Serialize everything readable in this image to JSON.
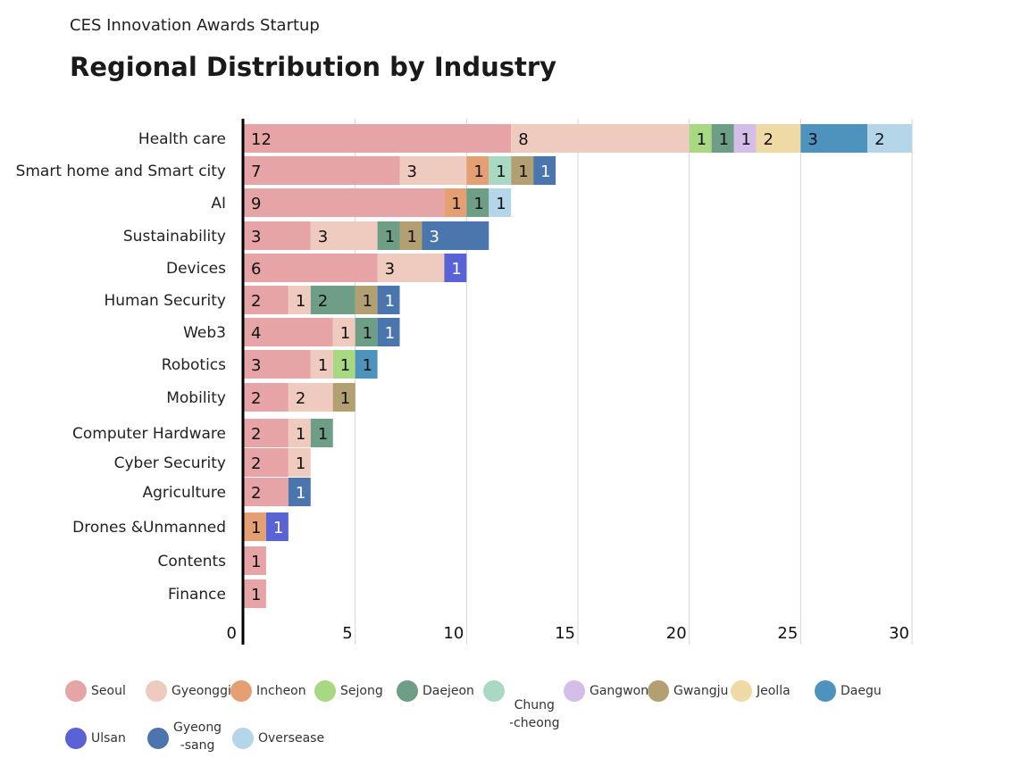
{
  "header": {
    "subtitle": "CES Innovation Awards Startup",
    "title": "Regional Distribution by Industry"
  },
  "chart_data": {
    "type": "bar",
    "orientation": "horizontal",
    "stacked": true,
    "title": "Regional Distribution by Industry",
    "subtitle": "CES Innovation Awards Startup",
    "xlabel": "",
    "ylabel": "",
    "xlim": [
      0,
      30
    ],
    "xticks": [
      "0",
      "5",
      "10",
      "15",
      "20",
      "25",
      "30"
    ],
    "grid": "vertical",
    "legend_position": "bottom",
    "categories": [
      "Health care",
      "Smart home and Smart city",
      "AI",
      "Sustainability",
      "Devices",
      "Human Security",
      "Web3",
      "Robotics",
      "Mobility",
      "Computer Hardware",
      "Cyber Security",
      "Agriculture",
      "Drones &Unmanned",
      "Contents",
      "Finance"
    ],
    "series": [
      {
        "name": "Seoul",
        "legend_label": "Seoul",
        "color": "#e6a4a7",
        "values": [
          12,
          7,
          9,
          3,
          6,
          2,
          4,
          3,
          2,
          2,
          2,
          2,
          0,
          1,
          1
        ]
      },
      {
        "name": "Gyeonggi",
        "legend_label": "Gyeonggi",
        "color": "#efcabe",
        "values": [
          8,
          3,
          0,
          3,
          3,
          1,
          1,
          1,
          2,
          1,
          1,
          0,
          0,
          0,
          0
        ]
      },
      {
        "name": "Incheon",
        "legend_label": "Incheon",
        "color": "#e4a072",
        "values": [
          0,
          1,
          1,
          0,
          0,
          0,
          0,
          0,
          0,
          0,
          0,
          0,
          1,
          0,
          0
        ]
      },
      {
        "name": "Sejong",
        "legend_label": "Sejong",
        "color": "#a8d882",
        "values": [
          1,
          0,
          0,
          0,
          0,
          0,
          0,
          1,
          0,
          0,
          0,
          0,
          0,
          0,
          0
        ]
      },
      {
        "name": "Daejeon",
        "legend_label": "Daejeon",
        "color": "#6f9e86",
        "values": [
          1,
          0,
          1,
          1,
          0,
          2,
          1,
          0,
          0,
          1,
          0,
          0,
          0,
          0,
          0
        ]
      },
      {
        "name": "Chungcheong",
        "legend_label": "Chung\n-cheong",
        "color": "#aad9c3",
        "values": [
          0,
          1,
          0,
          0,
          0,
          0,
          0,
          0,
          0,
          0,
          0,
          0,
          0,
          0,
          0
        ]
      },
      {
        "name": "Gangwon",
        "legend_label": "Gangwon",
        "color": "#d4bde6",
        "values": [
          1,
          0,
          0,
          0,
          0,
          0,
          0,
          0,
          0,
          0,
          0,
          0,
          0,
          0,
          0
        ]
      },
      {
        "name": "Gwangju",
        "legend_label": "Gwangju",
        "color": "#b29f72",
        "values": [
          0,
          1,
          0,
          1,
          0,
          1,
          0,
          0,
          1,
          0,
          0,
          0,
          0,
          0,
          0
        ]
      },
      {
        "name": "Jeolla",
        "legend_label": "Jeolla",
        "color": "#efd9a5",
        "values": [
          2,
          0,
          0,
          0,
          0,
          0,
          0,
          0,
          0,
          0,
          0,
          0,
          0,
          0,
          0
        ]
      },
      {
        "name": "Daegu",
        "legend_label": "Daegu",
        "color": "#4e93bd",
        "values": [
          3,
          0,
          0,
          0,
          0,
          0,
          0,
          1,
          0,
          0,
          0,
          0,
          0,
          0,
          0
        ]
      },
      {
        "name": "Ulsan",
        "legend_label": "Ulsan",
        "color": "#5963d6",
        "values": [
          0,
          0,
          0,
          0,
          1,
          0,
          0,
          0,
          0,
          0,
          0,
          0,
          1,
          0,
          0
        ]
      },
      {
        "name": "Gyeongsang",
        "legend_label": "Gyeong\n-sang",
        "color": "#4b76ad",
        "values": [
          0,
          1,
          0,
          3,
          0,
          1,
          1,
          0,
          0,
          0,
          0,
          1,
          0,
          0,
          0
        ]
      },
      {
        "name": "Oversease",
        "legend_label": "Oversease",
        "color": "#b5d5e8",
        "values": [
          2,
          0,
          1,
          0,
          0,
          0,
          0,
          0,
          0,
          0,
          0,
          0,
          0,
          0,
          0
        ]
      }
    ],
    "white_label_series": [
      "Ulsan",
      "Gyeongsang"
    ]
  }
}
